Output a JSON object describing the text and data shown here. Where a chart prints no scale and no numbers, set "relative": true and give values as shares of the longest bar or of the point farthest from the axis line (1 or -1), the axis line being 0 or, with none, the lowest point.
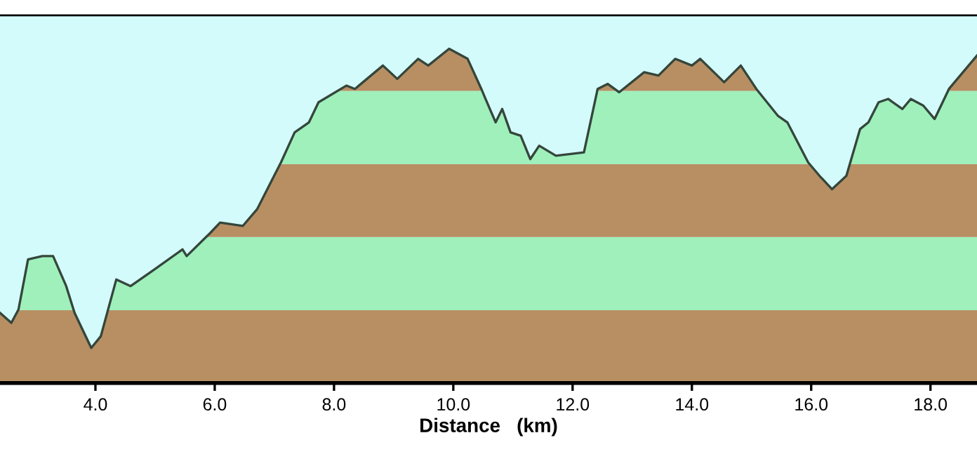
{
  "chart_data": {
    "type": "line",
    "relative": true,
    "xlabel": "Distance   (km)",
    "xlim": [
      2.4,
      18.78
    ],
    "xticks": [
      {
        "value": 4,
        "label": "4.0"
      },
      {
        "value": 6,
        "label": "6.0"
      },
      {
        "value": 8,
        "label": "8.0"
      },
      {
        "value": 10,
        "label": "10.0"
      },
      {
        "value": 12,
        "label": "12.0"
      },
      {
        "value": 14,
        "label": "14.0"
      },
      {
        "value": 16,
        "label": "16.0"
      },
      {
        "value": 18,
        "label": "18.0"
      }
    ],
    "tick_labels": "x",
    "grid": false,
    "legend": false,
    "bands": [
      {
        "axis": "y",
        "from": 0,
        "to": 0.218,
        "color": "#b88f63"
      },
      {
        "axis": "y",
        "from": 0.218,
        "to": 0.437,
        "color": "#9ff0bb"
      },
      {
        "axis": "y",
        "from": 0.437,
        "to": 0.655,
        "color": "#b88f63"
      },
      {
        "axis": "y",
        "from": 0.655,
        "to": 0.874,
        "color": "#9ff0bb"
      },
      {
        "axis": "y",
        "from": 0.874,
        "to": 1.0,
        "color": "#b88f63"
      }
    ],
    "series": [
      {
        "color": "#34463c",
        "x": [
          2.4,
          2.59,
          2.71,
          2.87,
          3.11,
          3.29,
          3.51,
          3.65,
          3.93,
          4.09,
          4.35,
          4.59,
          4.99,
          5.46,
          5.53,
          5.93,
          6.09,
          6.47,
          6.71,
          7.11,
          7.34,
          7.58,
          7.74,
          8.21,
          8.35,
          8.82,
          9.06,
          9.41,
          9.58,
          9.93,
          10.24,
          10.47,
          10.54,
          10.71,
          10.82,
          10.96,
          11.13,
          11.29,
          11.44,
          11.72,
          12.19,
          12.42,
          12.59,
          12.78,
          13.2,
          13.44,
          13.72,
          14.0,
          14.14,
          14.54,
          14.82,
          15.08,
          15.44,
          15.6,
          15.95,
          16.14,
          16.35,
          16.59,
          16.82,
          16.96,
          17.13,
          17.29,
          17.53,
          17.67,
          17.88,
          18.07,
          18.31,
          18.78
        ],
        "values": [
          0.21,
          0.18,
          0.22,
          0.37,
          0.38,
          0.38,
          0.29,
          0.21,
          0.105,
          0.14,
          0.31,
          0.29,
          0.34,
          0.4,
          0.38,
          0.45,
          0.48,
          0.47,
          0.52,
          0.66,
          0.75,
          0.78,
          0.84,
          0.89,
          0.88,
          0.95,
          0.91,
          0.97,
          0.95,
          1.0,
          0.97,
          0.88,
          0.85,
          0.78,
          0.82,
          0.75,
          0.74,
          0.67,
          0.71,
          0.68,
          0.69,
          0.88,
          0.895,
          0.87,
          0.93,
          0.92,
          0.97,
          0.95,
          0.97,
          0.9,
          0.95,
          0.88,
          0.8,
          0.78,
          0.66,
          0.62,
          0.58,
          0.62,
          0.76,
          0.78,
          0.84,
          0.85,
          0.82,
          0.85,
          0.83,
          0.79,
          0.88,
          0.98
        ]
      }
    ]
  }
}
